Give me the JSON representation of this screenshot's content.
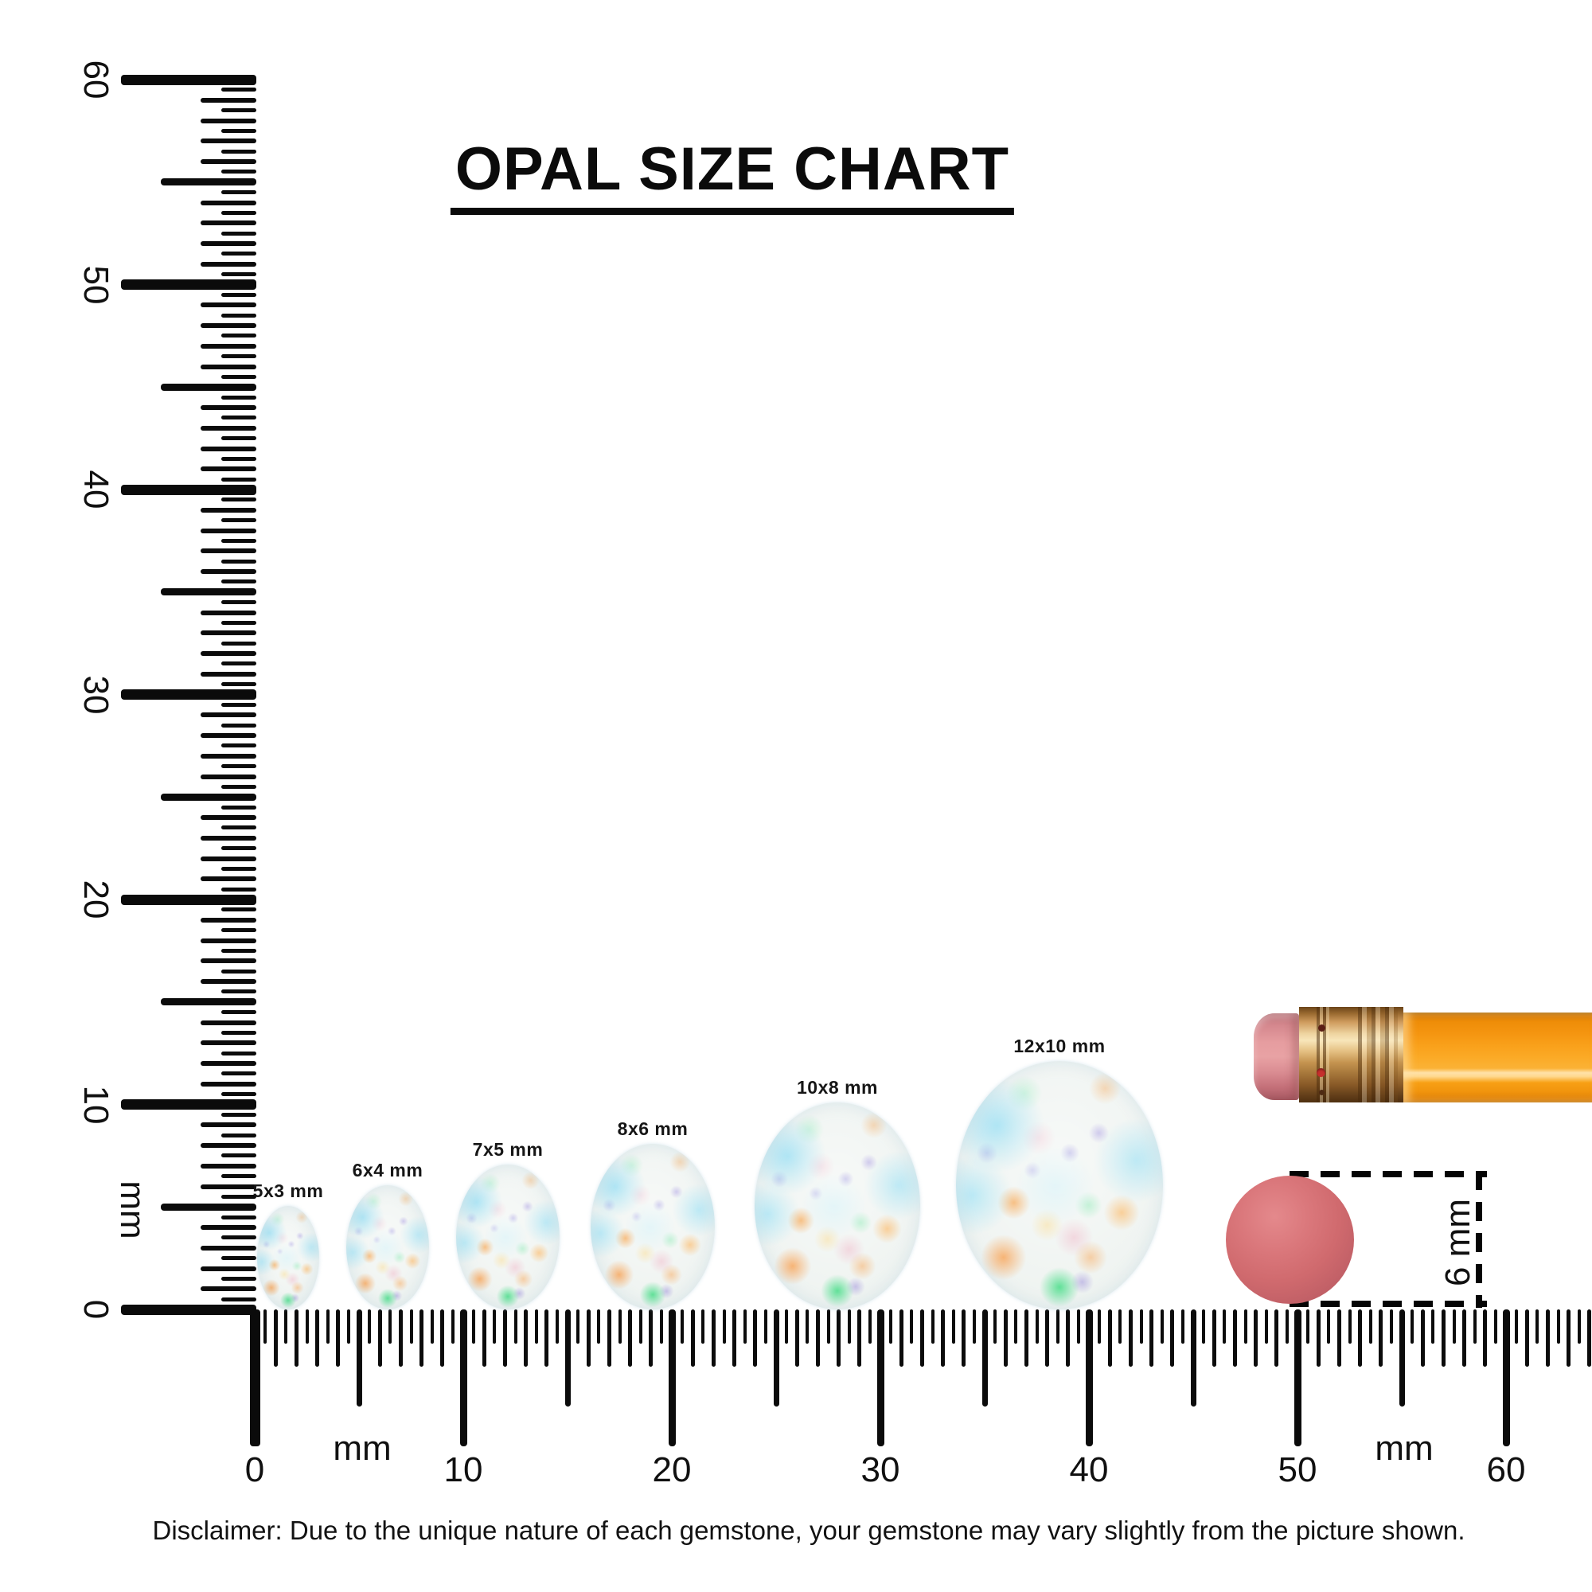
{
  "title": "OPAL SIZE CHART",
  "vertical_ruler": {
    "unit_label": "mm",
    "major_labels": [
      "60",
      "50",
      "40",
      "30",
      "20",
      "10",
      "0"
    ]
  },
  "horizontal_ruler": {
    "unit_labels": [
      "mm",
      "mm"
    ],
    "major_labels": [
      "0",
      "10",
      "20",
      "30",
      "40",
      "50",
      "60"
    ]
  },
  "opals": [
    {
      "label": "5x3 mm",
      "height_mm": 5,
      "width_mm": 3
    },
    {
      "label": "6x4 mm",
      "height_mm": 6,
      "width_mm": 4
    },
    {
      "label": "7x5 mm",
      "height_mm": 7,
      "width_mm": 5
    },
    {
      "label": "8x6 mm",
      "height_mm": 8,
      "width_mm": 6
    },
    {
      "label": "10x8 mm",
      "height_mm": 10,
      "width_mm": 8
    },
    {
      "label": "12x10 mm",
      "height_mm": 12,
      "width_mm": 10
    }
  ],
  "scale_reference": {
    "eraser_dot": {
      "label": "6 mm",
      "color": "#d06a6e"
    },
    "pencil": {
      "body_color": "#f79d12",
      "eraser_color": "#e2989c",
      "ferrule_color": "#d9a963"
    }
  },
  "disclaimer": "Disclaimer: Due to the unique nature of each gemstone, your gemstone may vary slightly from the picture shown.",
  "chart_data": {
    "type": "table",
    "title": "OPAL SIZE CHART",
    "unit": "mm",
    "opal_sizes_mm": [
      [
        5,
        3
      ],
      [
        6,
        4
      ],
      [
        7,
        5
      ],
      [
        8,
        6
      ],
      [
        10,
        8
      ],
      [
        12,
        10
      ]
    ],
    "ruler_range_mm": [
      0,
      60
    ],
    "reference_dot_diameter_mm": 6
  }
}
